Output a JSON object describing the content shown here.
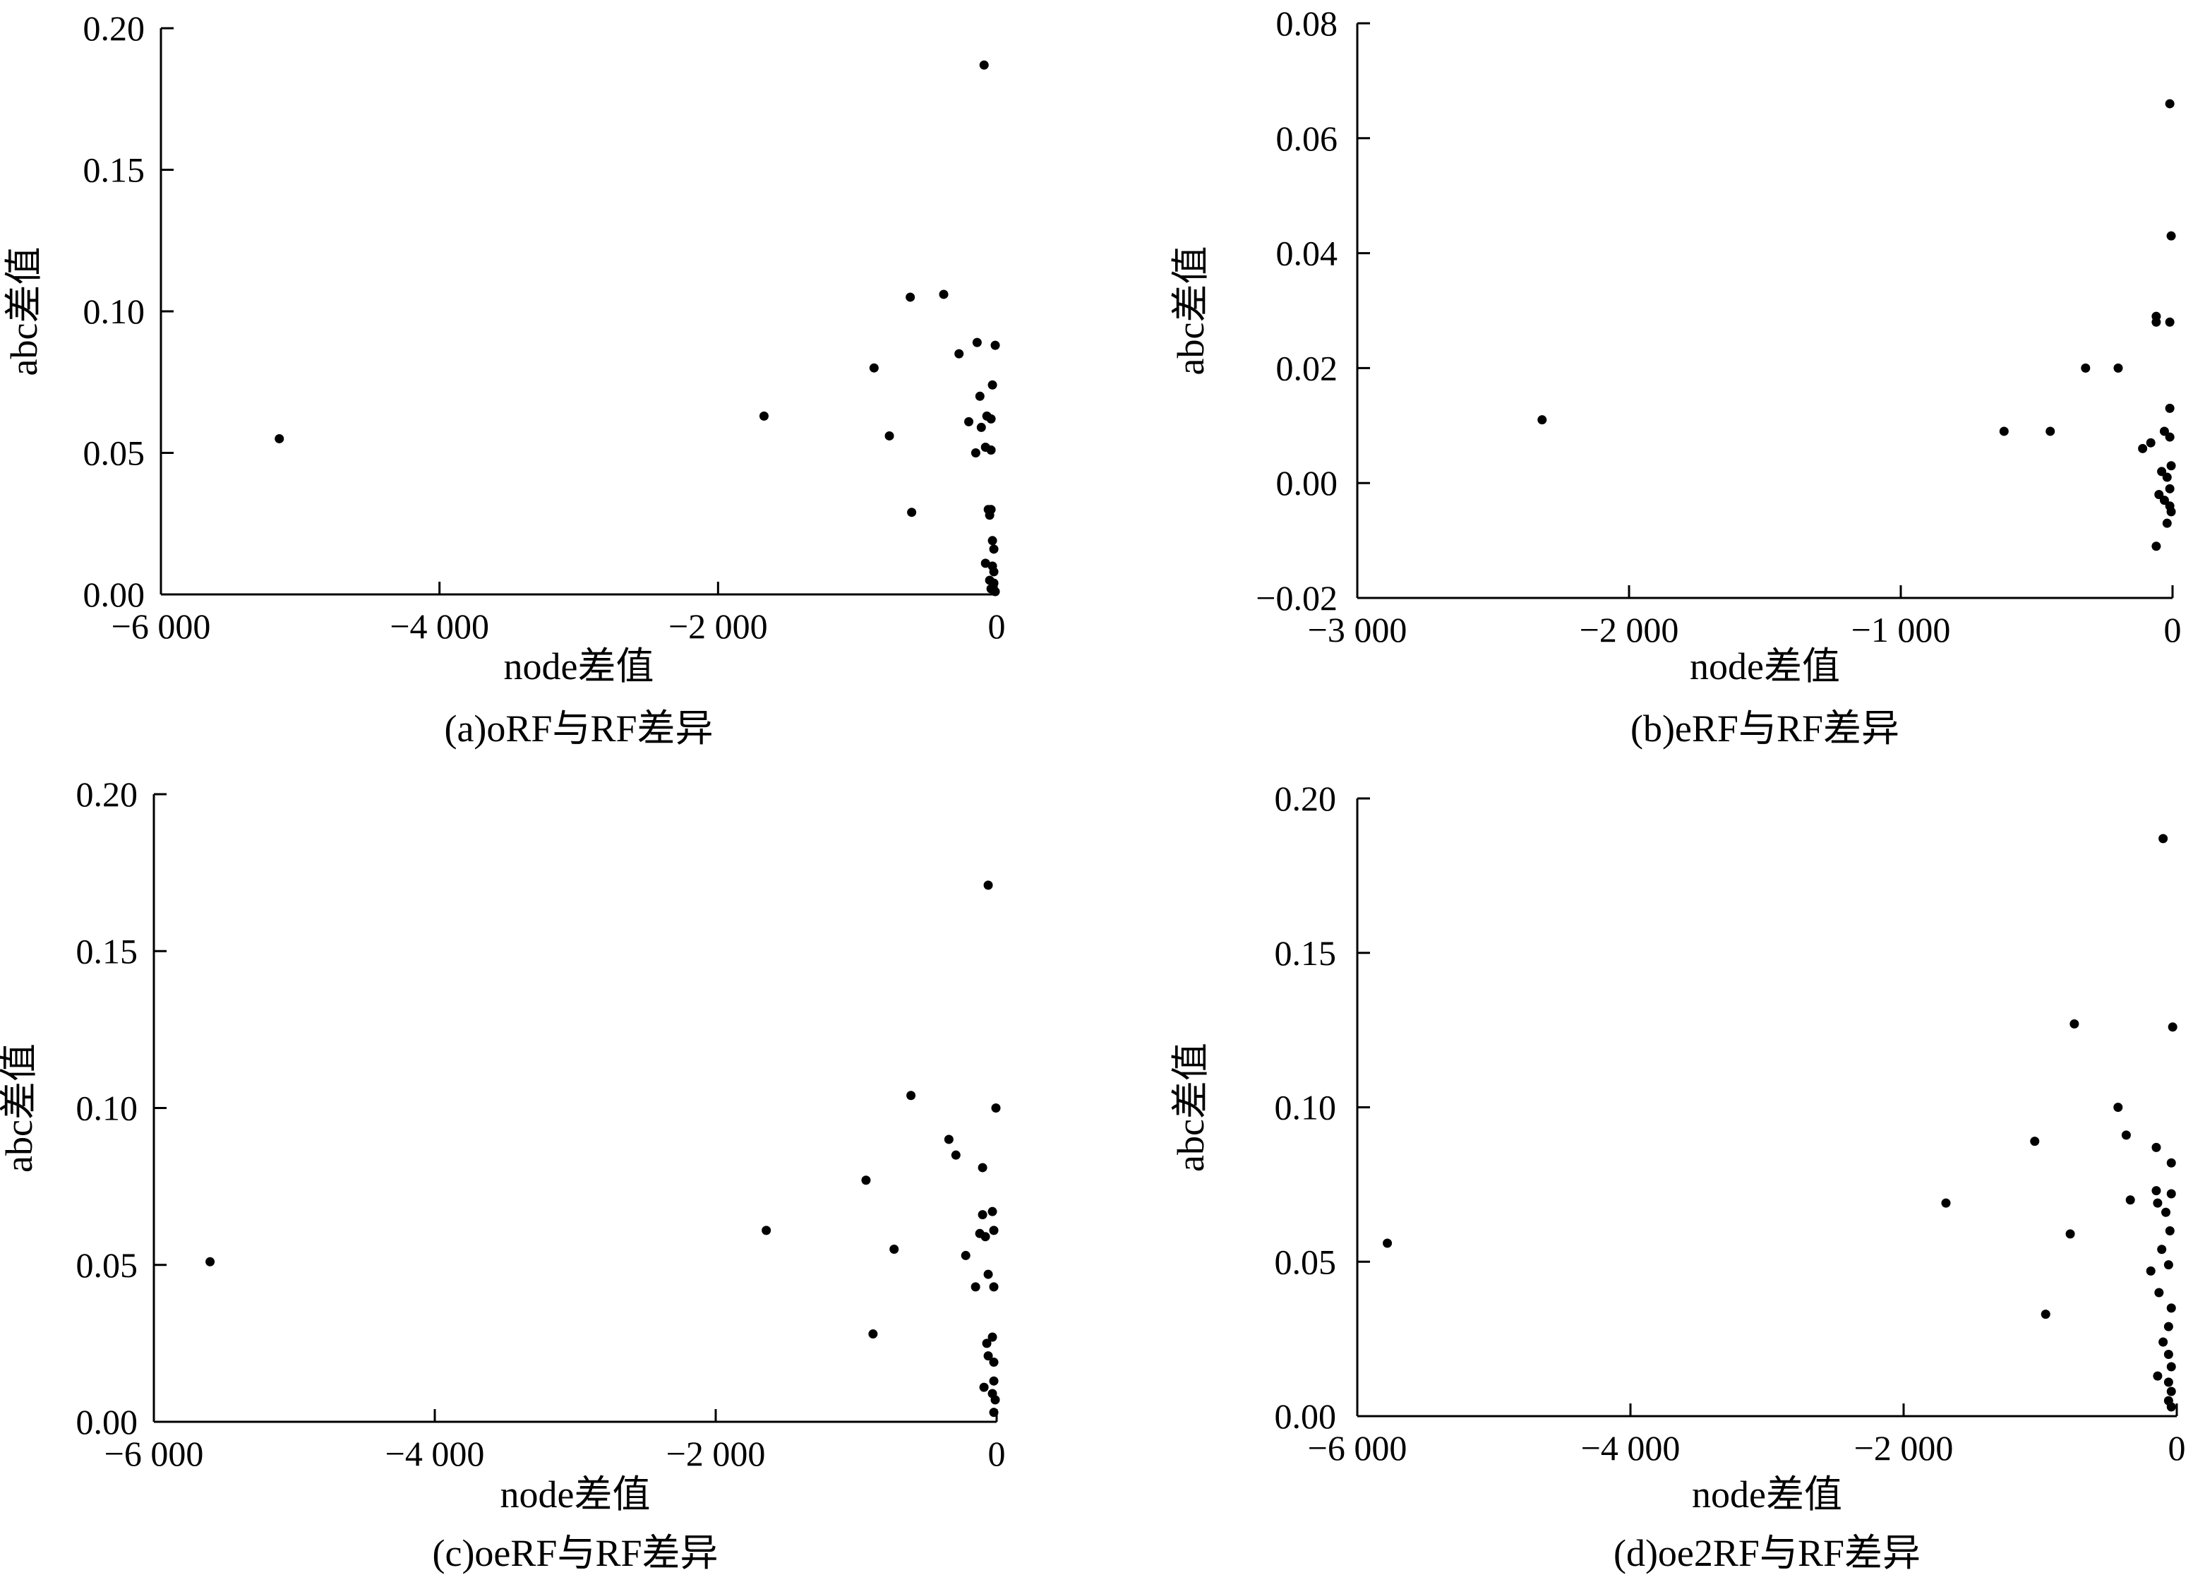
{
  "colors": {
    "axis": "#000000",
    "points": "#000000",
    "background": "#ffffff"
  },
  "chart_data": [
    {
      "type": "scatter",
      "caption": "(a)oRF与RF差异",
      "xlabel": "node差值",
      "ylabel": "abc差值",
      "xlim": [
        -6000,
        0
      ],
      "ylim": [
        0,
        0.2
      ],
      "x_ticks": [
        {
          "value": -6000,
          "label": "−6 000"
        },
        {
          "value": -4000,
          "label": "−4 000"
        },
        {
          "value": -2000,
          "label": "−2 000"
        },
        {
          "value": 0,
          "label": "0"
        }
      ],
      "y_ticks": [
        {
          "value": 0,
          "label": "0.00"
        },
        {
          "value": 0.05,
          "label": "0.05"
        },
        {
          "value": 0.1,
          "label": "0.10"
        },
        {
          "value": 0.15,
          "label": "0.15"
        },
        {
          "value": 0.2,
          "label": "0.20"
        }
      ],
      "grid": false,
      "points": [
        [
          -5150,
          0.055
        ],
        [
          -1670,
          0.063
        ],
        [
          -880,
          0.08
        ],
        [
          -770,
          0.056
        ],
        [
          -610,
          0.029
        ],
        [
          -620,
          0.105
        ],
        [
          -380,
          0.106
        ],
        [
          -270,
          0.085
        ],
        [
          -140,
          0.089
        ],
        [
          -10,
          0.088
        ],
        [
          -90,
          0.187
        ],
        [
          -200,
          0.061
        ],
        [
          -150,
          0.05
        ],
        [
          -120,
          0.07
        ],
        [
          -110,
          0.059
        ],
        [
          -70,
          0.063
        ],
        [
          -30,
          0.074
        ],
        [
          -40,
          0.062
        ],
        [
          -80,
          0.052
        ],
        [
          -40,
          0.051
        ],
        [
          -60,
          0.03
        ],
        [
          -50,
          0.028
        ],
        [
          -40,
          0.03
        ],
        [
          -30,
          0.019
        ],
        [
          -20,
          0.016
        ],
        [
          -20,
          0.008
        ],
        [
          -80,
          0.011
        ],
        [
          -30,
          0.01
        ],
        [
          -50,
          0.005
        ],
        [
          -20,
          0.004
        ],
        [
          -40,
          0.002
        ],
        [
          -10,
          0.001
        ]
      ]
    },
    {
      "type": "scatter",
      "caption": "(b)eRF与RF差异",
      "xlabel": "node差值",
      "ylabel": "abc差值",
      "xlim": [
        -3000,
        0
      ],
      "ylim": [
        -0.02,
        0.08
      ],
      "x_ticks": [
        {
          "value": -3000,
          "label": "−3 000"
        },
        {
          "value": -2000,
          "label": "−2 000"
        },
        {
          "value": -1000,
          "label": "−1 000"
        },
        {
          "value": 0,
          "label": "0"
        }
      ],
      "y_ticks": [
        {
          "value": -0.02,
          "label": "−0.02"
        },
        {
          "value": 0,
          "label": "0.00"
        },
        {
          "value": 0.02,
          "label": "0.02"
        },
        {
          "value": 0.04,
          "label": "0.04"
        },
        {
          "value": 0.06,
          "label": "0.06"
        },
        {
          "value": 0.08,
          "label": "0.08"
        }
      ],
      "grid": false,
      "points": [
        [
          -2320,
          0.011
        ],
        [
          -620,
          0.009
        ],
        [
          -450,
          0.009
        ],
        [
          -320,
          0.02
        ],
        [
          -200,
          0.02
        ],
        [
          -10,
          0.066
        ],
        [
          -5,
          0.043
        ],
        [
          -60,
          0.029
        ],
        [
          -60,
          0.028
        ],
        [
          -10,
          0.028
        ],
        [
          -10,
          0.013
        ],
        [
          -30,
          0.009
        ],
        [
          -10,
          0.008
        ],
        [
          -110,
          0.006
        ],
        [
          -80,
          0.007
        ],
        [
          -5,
          0.003
        ],
        [
          -40,
          0.002
        ],
        [
          -20,
          0.001
        ],
        [
          -10,
          -0.001
        ],
        [
          -50,
          -0.002
        ],
        [
          -30,
          -0.003
        ],
        [
          -10,
          -0.004
        ],
        [
          -5,
          -0.005
        ],
        [
          -20,
          -0.007
        ],
        [
          -60,
          -0.011
        ]
      ]
    },
    {
      "type": "scatter",
      "caption": "(c)oeRF与RF差异",
      "xlabel": "node差值",
      "ylabel": "abc差值",
      "xlim": [
        -6000,
        0
      ],
      "ylim": [
        0,
        0.2
      ],
      "x_ticks": [
        {
          "value": -6000,
          "label": "−6 000"
        },
        {
          "value": -4000,
          "label": "−4 000"
        },
        {
          "value": -2000,
          "label": "−2 000"
        },
        {
          "value": 0,
          "label": "0"
        }
      ],
      "y_ticks": [
        {
          "value": 0,
          "label": "0.00"
        },
        {
          "value": 0.05,
          "label": "0.05"
        },
        {
          "value": 0.1,
          "label": "0.10"
        },
        {
          "value": 0.15,
          "label": "0.15"
        },
        {
          "value": 0.2,
          "label": "0.20"
        }
      ],
      "grid": false,
      "points": [
        [
          -5600,
          0.051
        ],
        [
          -1640,
          0.061
        ],
        [
          -930,
          0.077
        ],
        [
          -730,
          0.055
        ],
        [
          -880,
          0.028
        ],
        [
          -610,
          0.104
        ],
        [
          -340,
          0.09
        ],
        [
          -290,
          0.085
        ],
        [
          -100,
          0.081
        ],
        [
          -5,
          0.1
        ],
        [
          -60,
          0.171
        ],
        [
          -220,
          0.053
        ],
        [
          -150,
          0.043
        ],
        [
          -100,
          0.066
        ],
        [
          -30,
          0.067
        ],
        [
          -120,
          0.06
        ],
        [
          -80,
          0.059
        ],
        [
          -20,
          0.061
        ],
        [
          -60,
          0.047
        ],
        [
          -20,
          0.043
        ],
        [
          -70,
          0.025
        ],
        [
          -30,
          0.027
        ],
        [
          -20,
          0.019
        ],
        [
          -60,
          0.021
        ],
        [
          -20,
          0.013
        ],
        [
          -90,
          0.011
        ],
        [
          -30,
          0.009
        ],
        [
          -10,
          0.007
        ],
        [
          -20,
          0.003
        ]
      ]
    },
    {
      "type": "scatter",
      "caption": "(d)oe2RF与RF差异",
      "xlabel": "node差值",
      "ylabel": "abc差值",
      "xlim": [
        -6000,
        0
      ],
      "ylim": [
        0,
        0.2
      ],
      "x_ticks": [
        {
          "value": -6000,
          "label": "−6 000"
        },
        {
          "value": -4000,
          "label": "−4 000"
        },
        {
          "value": -2000,
          "label": "−2 000"
        },
        {
          "value": 0,
          "label": "0"
        }
      ],
      "y_ticks": [
        {
          "value": 0,
          "label": "0.00"
        },
        {
          "value": 0.05,
          "label": "0.05"
        },
        {
          "value": 0.1,
          "label": "0.10"
        },
        {
          "value": 0.15,
          "label": "0.15"
        },
        {
          "value": 0.2,
          "label": "0.20"
        }
      ],
      "grid": false,
      "points": [
        [
          -5780,
          0.056
        ],
        [
          -1690,
          0.069
        ],
        [
          -1040,
          0.089
        ],
        [
          -960,
          0.033
        ],
        [
          -780,
          0.059
        ],
        [
          -750,
          0.127
        ],
        [
          -430,
          0.1
        ],
        [
          -370,
          0.091
        ],
        [
          -340,
          0.07
        ],
        [
          -190,
          0.047
        ],
        [
          -100,
          0.187
        ],
        [
          -30,
          0.126
        ],
        [
          -150,
          0.087
        ],
        [
          -40,
          0.082
        ],
        [
          -150,
          0.073
        ],
        [
          -40,
          0.072
        ],
        [
          -140,
          0.069
        ],
        [
          -80,
          0.066
        ],
        [
          -50,
          0.06
        ],
        [
          -110,
          0.054
        ],
        [
          -60,
          0.049
        ],
        [
          -130,
          0.04
        ],
        [
          -40,
          0.035
        ],
        [
          -60,
          0.029
        ],
        [
          -100,
          0.024
        ],
        [
          -60,
          0.02
        ],
        [
          -40,
          0.016
        ],
        [
          -140,
          0.013
        ],
        [
          -60,
          0.011
        ],
        [
          -40,
          0.008
        ],
        [
          -60,
          0.005
        ],
        [
          -40,
          0.003
        ]
      ]
    }
  ]
}
